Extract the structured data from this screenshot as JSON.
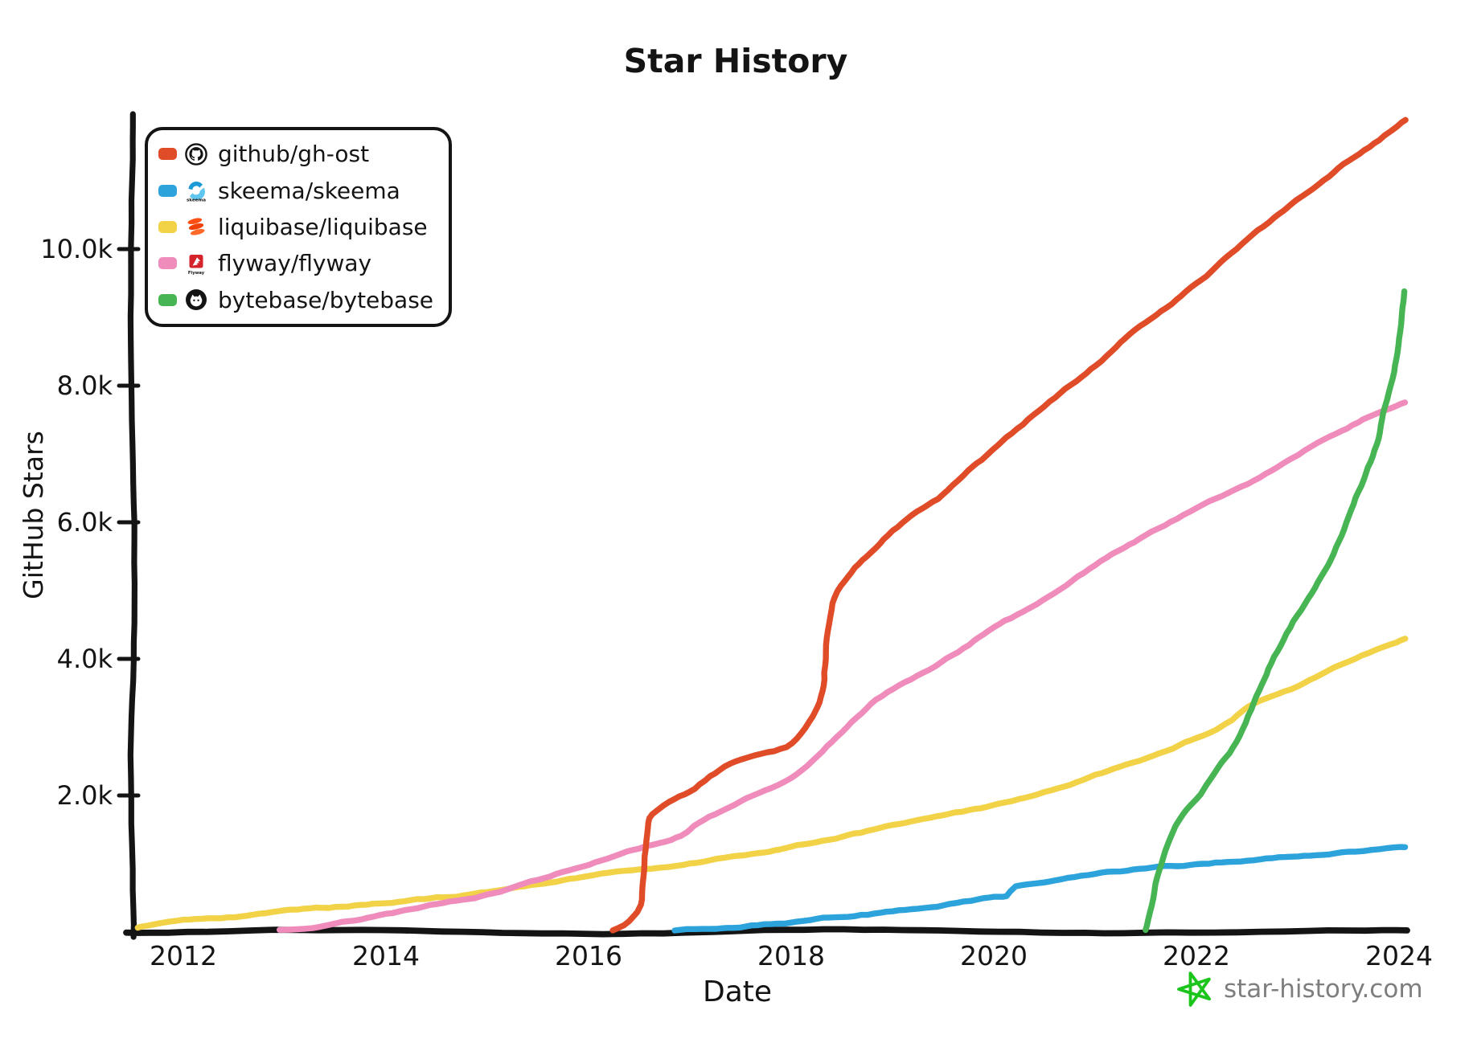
{
  "title": "Star History",
  "chart_data": {
    "type": "line",
    "title": "Star History",
    "xlabel": "Date",
    "ylabel": "GitHub Stars",
    "xlim": [
      2011.5,
      2024.1
    ],
    "ylim": [
      0,
      12000
    ],
    "x_unit": "year",
    "grid": false,
    "legend_position": "top-left",
    "x_ticks": [
      2012,
      2014,
      2016,
      2018,
      2020,
      2022,
      2024
    ],
    "y_ticks": [
      {
        "value": 2000,
        "label": "2.0k"
      },
      {
        "value": 4000,
        "label": "4.0k"
      },
      {
        "value": 6000,
        "label": "6.0k"
      },
      {
        "value": 8000,
        "label": "8.0k"
      },
      {
        "value": 10000,
        "label": "10.0k"
      }
    ],
    "series": [
      {
        "name": "github/gh-ost",
        "slug": "gh-ost",
        "color": "#e04b28",
        "icon": "github-icon",
        "points": [
          [
            2016.24,
            20
          ],
          [
            2016.35,
            100
          ],
          [
            2016.45,
            220
          ],
          [
            2016.52,
            400
          ],
          [
            2016.55,
            900
          ],
          [
            2016.58,
            1500
          ],
          [
            2016.63,
            1720
          ],
          [
            2016.8,
            1900
          ],
          [
            2017.0,
            2050
          ],
          [
            2017.2,
            2280
          ],
          [
            2017.45,
            2500
          ],
          [
            2017.7,
            2620
          ],
          [
            2017.95,
            2720
          ],
          [
            2018.1,
            2900
          ],
          [
            2018.22,
            3150
          ],
          [
            2018.3,
            3450
          ],
          [
            2018.33,
            3900
          ],
          [
            2018.37,
            4500
          ],
          [
            2018.42,
            4900
          ],
          [
            2018.52,
            5150
          ],
          [
            2018.62,
            5350
          ],
          [
            2018.78,
            5580
          ],
          [
            2019.0,
            5880
          ],
          [
            2019.25,
            6150
          ],
          [
            2019.5,
            6400
          ],
          [
            2019.75,
            6750
          ],
          [
            2020.0,
            7060
          ],
          [
            2020.5,
            7700
          ],
          [
            2021.0,
            8300
          ],
          [
            2021.35,
            8750
          ],
          [
            2021.7,
            9140
          ],
          [
            2022.0,
            9500
          ],
          [
            2022.4,
            10000
          ],
          [
            2022.87,
            10560
          ],
          [
            2023.2,
            10950
          ],
          [
            2023.5,
            11300
          ],
          [
            2023.8,
            11600
          ],
          [
            2024.06,
            11900
          ]
        ]
      },
      {
        "name": "skeema/skeema",
        "slug": "skeema",
        "color": "#2da3dc",
        "icon": "skeema-icon",
        "points": [
          [
            2016.85,
            20
          ],
          [
            2017.2,
            50
          ],
          [
            2017.5,
            80
          ],
          [
            2018.0,
            140
          ],
          [
            2018.5,
            230
          ],
          [
            2019.0,
            300
          ],
          [
            2019.5,
            400
          ],
          [
            2020.0,
            500
          ],
          [
            2020.13,
            520
          ],
          [
            2020.22,
            660
          ],
          [
            2020.5,
            730
          ],
          [
            2021.0,
            840
          ],
          [
            2021.5,
            930
          ],
          [
            2022.0,
            990
          ],
          [
            2022.5,
            1060
          ],
          [
            2023.0,
            1120
          ],
          [
            2023.5,
            1180
          ],
          [
            2024.06,
            1240
          ]
        ]
      },
      {
        "name": "liquibase/liquibase",
        "slug": "liquibase",
        "color": "#f2d348",
        "icon": "liquibase-icon",
        "points": [
          [
            2011.55,
            60
          ],
          [
            2012.0,
            170
          ],
          [
            2012.5,
            230
          ],
          [
            2013.0,
            300
          ],
          [
            2013.5,
            360
          ],
          [
            2014.0,
            440
          ],
          [
            2014.5,
            500
          ],
          [
            2015.0,
            580
          ],
          [
            2015.5,
            680
          ],
          [
            2016.0,
            820
          ],
          [
            2016.5,
            900
          ],
          [
            2017.0,
            1000
          ],
          [
            2017.65,
            1150
          ],
          [
            2018.0,
            1260
          ],
          [
            2018.5,
            1400
          ],
          [
            2019.0,
            1550
          ],
          [
            2019.5,
            1700
          ],
          [
            2020.0,
            1850
          ],
          [
            2020.5,
            2050
          ],
          [
            2021.0,
            2300
          ],
          [
            2021.5,
            2550
          ],
          [
            2022.0,
            2850
          ],
          [
            2022.3,
            3050
          ],
          [
            2022.57,
            3350
          ],
          [
            2023.0,
            3600
          ],
          [
            2023.5,
            3950
          ],
          [
            2024.06,
            4300
          ]
        ]
      },
      {
        "name": "flyway/flyway",
        "slug": "flyway",
        "color": "#f08cbb",
        "icon": "flyway-icon",
        "points": [
          [
            2012.95,
            30
          ],
          [
            2013.5,
            130
          ],
          [
            2014.0,
            260
          ],
          [
            2014.5,
            400
          ],
          [
            2015.0,
            550
          ],
          [
            2015.5,
            750
          ],
          [
            2016.0,
            1000
          ],
          [
            2016.5,
            1220
          ],
          [
            2016.91,
            1410
          ],
          [
            2017.1,
            1600
          ],
          [
            2017.5,
            1900
          ],
          [
            2018.0,
            2250
          ],
          [
            2018.45,
            2850
          ],
          [
            2018.84,
            3400
          ],
          [
            2019.3,
            3780
          ],
          [
            2019.7,
            4150
          ],
          [
            2020.0,
            4470
          ],
          [
            2020.43,
            4800
          ],
          [
            2021.0,
            5370
          ],
          [
            2021.5,
            5800
          ],
          [
            2022.0,
            6200
          ],
          [
            2022.57,
            6600
          ],
          [
            2023.0,
            7000
          ],
          [
            2023.37,
            7300
          ],
          [
            2023.7,
            7550
          ],
          [
            2024.06,
            7750
          ]
        ]
      },
      {
        "name": "bytebase/bytebase",
        "slug": "bytebase",
        "color": "#47b553",
        "icon": "bytebase-icon",
        "points": [
          [
            2021.5,
            30
          ],
          [
            2021.56,
            400
          ],
          [
            2021.62,
            800
          ],
          [
            2021.7,
            1200
          ],
          [
            2021.8,
            1550
          ],
          [
            2021.95,
            1850
          ],
          [
            2022.05,
            2000
          ],
          [
            2022.2,
            2330
          ],
          [
            2022.4,
            2780
          ],
          [
            2022.57,
            3350
          ],
          [
            2022.7,
            3850
          ],
          [
            2022.82,
            4200
          ],
          [
            2022.95,
            4550
          ],
          [
            2023.1,
            4900
          ],
          [
            2023.26,
            5300
          ],
          [
            2023.45,
            5900
          ],
          [
            2023.6,
            6450
          ],
          [
            2023.76,
            7050
          ],
          [
            2023.84,
            7500
          ],
          [
            2023.94,
            8100
          ],
          [
            2024.0,
            8600
          ],
          [
            2024.06,
            9380
          ]
        ]
      }
    ]
  },
  "footer": {
    "site": "star-history.com",
    "star_color": "#1cc51c"
  },
  "colors": {
    "axis": "#141414",
    "footer_text": "#7e7e7e"
  }
}
